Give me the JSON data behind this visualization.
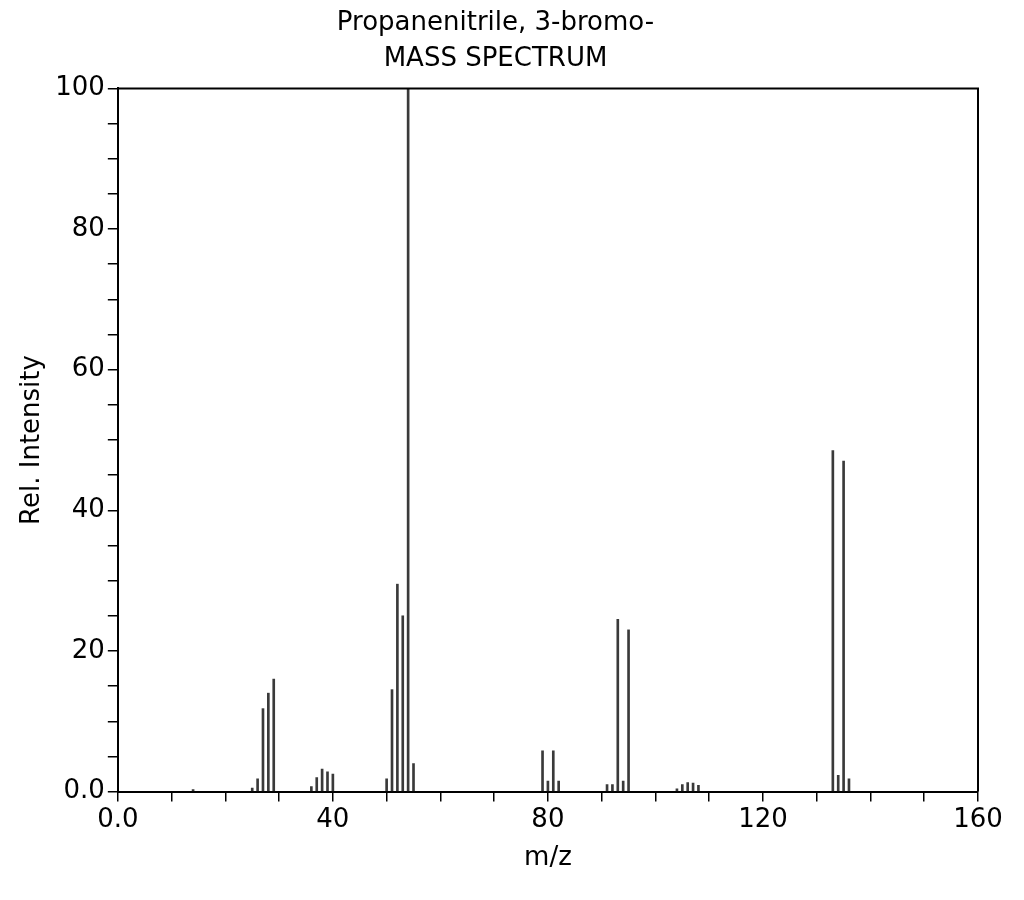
{
  "chart_data": {
    "type": "bar",
    "title": "Propanenitrile, 3-bromo-",
    "subtitle": "MASS SPECTRUM",
    "xlabel": "m/z",
    "ylabel": "Rel. Intensity",
    "x": [
      14,
      25,
      26,
      27,
      28,
      29,
      36,
      37,
      38,
      39,
      40,
      50,
      51,
      52,
      53,
      54,
      55,
      79,
      80,
      81,
      82,
      91,
      92,
      93,
      94,
      95,
      104,
      105,
      106,
      107,
      108,
      133,
      134,
      135,
      136
    ],
    "values": [
      0.3,
      0.5,
      1.8,
      11.8,
      14,
      16,
      0.7,
      2,
      3.2,
      2.8,
      2.5,
      1.8,
      14.5,
      29.5,
      25,
      100,
      4,
      5.8,
      1.5,
      5.8,
      1.5,
      1,
      1,
      24.5,
      1.5,
      23,
      0.4,
      1,
      1.3,
      1.2,
      0.9,
      48.5,
      2.3,
      47,
      1.8
    ],
    "color": "#3a3a3a",
    "xlim": [
      0,
      160
    ],
    "xticks": [
      {
        "value": 0,
        "label": "0.0"
      },
      {
        "value": 10,
        "label": null
      },
      {
        "value": 20,
        "label": null
      },
      {
        "value": 30,
        "label": null
      },
      40,
      {
        "value": 50,
        "label": null
      },
      {
        "value": 60,
        "label": null
      },
      {
        "value": 70,
        "label": null
      },
      80,
      {
        "value": 90,
        "label": null
      },
      {
        "value": 100,
        "label": null
      },
      {
        "value": 110,
        "label": null
      },
      120,
      {
        "value": 130,
        "label": null
      },
      {
        "value": 140,
        "label": null
      },
      {
        "value": 150,
        "label": null
      },
      160
    ],
    "ylim": [
      0,
      100
    ],
    "yticks": [
      {
        "value": 0,
        "label": "0.0"
      },
      {
        "value": 5,
        "label": null
      },
      {
        "value": 10,
        "label": null
      },
      {
        "value": 15,
        "label": null
      },
      20,
      {
        "value": 25,
        "label": null
      },
      {
        "value": 30,
        "label": null
      },
      {
        "value": 35,
        "label": null
      },
      40,
      {
        "value": 45,
        "label": null
      },
      {
        "value": 50,
        "label": null
      },
      {
        "value": 55,
        "label": null
      },
      60,
      {
        "value": 65,
        "label": null
      },
      {
        "value": 70,
        "label": null
      },
      {
        "value": 75,
        "label": null
      },
      80,
      {
        "value": 85,
        "label": null
      },
      {
        "value": 90,
        "label": null
      },
      {
        "value": 95,
        "label": null
      },
      100
    ],
    "grid": false,
    "legend": false
  }
}
